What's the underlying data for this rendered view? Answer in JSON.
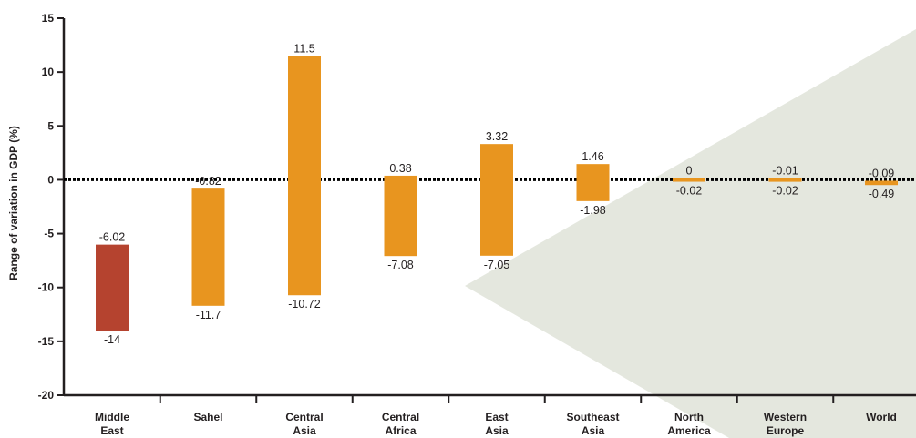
{
  "chart_data": {
    "type": "bar",
    "title": "",
    "xlabel": "",
    "ylabel": "Range of variation in GDP (%)",
    "ylim": [
      -20,
      15
    ],
    "yticks": [
      15,
      10,
      5,
      0,
      -5,
      -10,
      -15,
      -20
    ],
    "grid": false,
    "zero_line": "dotted",
    "categories": [
      [
        "Middle",
        "East"
      ],
      [
        "Sahel"
      ],
      [
        "Central",
        "Asia"
      ],
      [
        "Central",
        "Africa"
      ],
      [
        "East",
        "Asia"
      ],
      [
        "Southeast",
        "Asia"
      ],
      [
        "North",
        "America"
      ],
      [
        "Western",
        "Europe"
      ],
      [
        "World"
      ]
    ],
    "series": [
      {
        "values": [
          {
            "high": -6.02,
            "low": -14,
            "high_label": "-6.02",
            "low_label": "-14",
            "color": "#b5432f"
          },
          {
            "high": -0.82,
            "low": -11.7,
            "high_label": "-0.82",
            "low_label": "-11.7",
            "color": "#e8951f"
          },
          {
            "high": 11.5,
            "low": -10.72,
            "high_label": "11.5",
            "low_label": "-10.72",
            "color": "#e8951f"
          },
          {
            "high": 0.38,
            "low": -7.08,
            "high_label": "0.38",
            "low_label": "-7.08",
            "color": "#e8951f"
          },
          {
            "high": 3.32,
            "low": -7.05,
            "high_label": "3.32",
            "low_label": "-7.05",
            "color": "#e8951f"
          },
          {
            "high": 1.46,
            "low": -1.98,
            "high_label": "1.46",
            "low_label": "-1.98",
            "color": "#e8951f"
          },
          {
            "high": 0,
            "low": -0.02,
            "high_label": "0",
            "low_label": "-0.02",
            "color": "#e8951f"
          },
          {
            "high": -0.01,
            "low": -0.02,
            "high_label": "-0.01",
            "low_label": "-0.02",
            "color": "#e8951f"
          },
          {
            "high": -0.09,
            "low": -0.49,
            "high_label": "-0.09",
            "low_label": "-0.49",
            "color": "#e8951f"
          }
        ]
      }
    ],
    "colors": {
      "highlight": "#b5432f",
      "bar": "#e8951f",
      "background_shape": "#e4e7de",
      "axis": "#231f20"
    }
  }
}
